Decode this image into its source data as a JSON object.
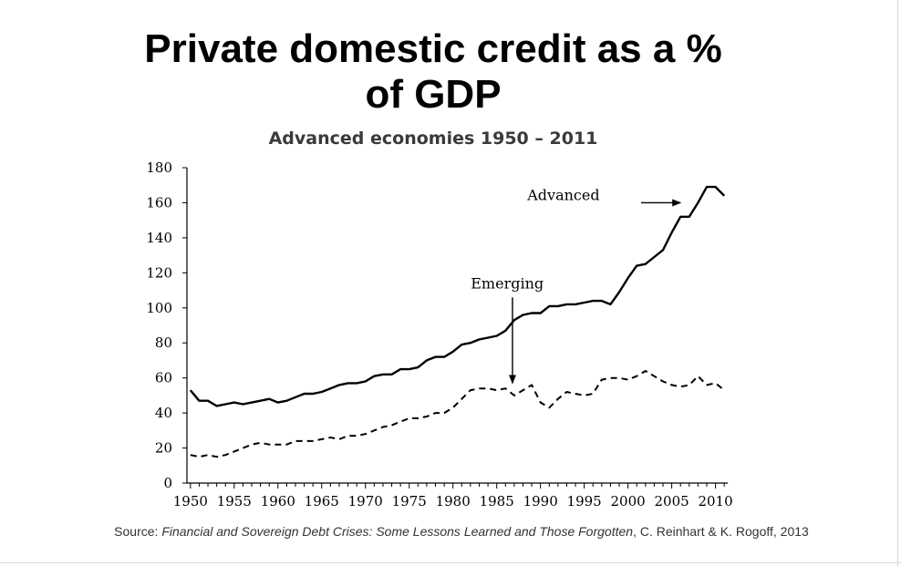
{
  "slide": {
    "title_line1": "Private domestic credit as a %",
    "title_line2": "of GDP",
    "subtitle": "Advanced economies 1950 – 2011",
    "source_prefix": "Source: ",
    "source_title": "Financial and Sovereign Debt Crises: Some Lessons Learned and Those Forgotten",
    "source_suffix": ", C. Reinhart & K.  Rogoff, 2013"
  },
  "chart_data": {
    "type": "line",
    "title": "",
    "xlabel": "",
    "ylabel": "",
    "xlim": [
      1950,
      2011
    ],
    "ylim": [
      0,
      180
    ],
    "x_ticks": [
      1950,
      1955,
      1960,
      1965,
      1970,
      1975,
      1980,
      1985,
      1990,
      1995,
      2000,
      2005,
      2010
    ],
    "y_ticks": [
      0,
      20,
      40,
      60,
      80,
      100,
      120,
      140,
      160,
      180
    ],
    "grid": false,
    "series": [
      {
        "name": "Advanced",
        "style": "solid",
        "color": "#000000",
        "points": [
          [
            1950,
            53
          ],
          [
            1951,
            47
          ],
          [
            1952,
            47
          ],
          [
            1953,
            44
          ],
          [
            1954,
            45
          ],
          [
            1955,
            46
          ],
          [
            1956,
            45
          ],
          [
            1957,
            46
          ],
          [
            1958,
            47
          ],
          [
            1959,
            48
          ],
          [
            1960,
            46
          ],
          [
            1961,
            47
          ],
          [
            1962,
            49
          ],
          [
            1963,
            51
          ],
          [
            1964,
            51
          ],
          [
            1965,
            52
          ],
          [
            1966,
            54
          ],
          [
            1967,
            56
          ],
          [
            1968,
            57
          ],
          [
            1969,
            57
          ],
          [
            1970,
            58
          ],
          [
            1971,
            61
          ],
          [
            1972,
            62
          ],
          [
            1973,
            62
          ],
          [
            1974,
            65
          ],
          [
            1975,
            65
          ],
          [
            1976,
            66
          ],
          [
            1977,
            70
          ],
          [
            1978,
            72
          ],
          [
            1979,
            72
          ],
          [
            1980,
            75
          ],
          [
            1981,
            79
          ],
          [
            1982,
            80
          ],
          [
            1983,
            82
          ],
          [
            1984,
            83
          ],
          [
            1985,
            84
          ],
          [
            1986,
            87
          ],
          [
            1987,
            93
          ],
          [
            1988,
            96
          ],
          [
            1989,
            97
          ],
          [
            1990,
            97
          ],
          [
            1991,
            101
          ],
          [
            1992,
            101
          ],
          [
            1993,
            102
          ],
          [
            1994,
            102
          ],
          [
            1995,
            103
          ],
          [
            1996,
            104
          ],
          [
            1997,
            104
          ],
          [
            1998,
            102
          ],
          [
            1999,
            109
          ],
          [
            2000,
            117
          ],
          [
            2001,
            124
          ],
          [
            2002,
            125
          ],
          [
            2003,
            129
          ],
          [
            2004,
            133
          ],
          [
            2005,
            143
          ],
          [
            2006,
            152
          ],
          [
            2007,
            152
          ],
          [
            2008,
            160
          ],
          [
            2009,
            169
          ],
          [
            2010,
            169
          ],
          [
            2011,
            164
          ]
        ]
      },
      {
        "name": "Emerging",
        "style": "dashed",
        "color": "#000000",
        "points": [
          [
            1950,
            16
          ],
          [
            1951,
            15
          ],
          [
            1952,
            16
          ],
          [
            1953,
            15
          ],
          [
            1954,
            16
          ],
          [
            1955,
            18
          ],
          [
            1956,
            20
          ],
          [
            1957,
            22
          ],
          [
            1958,
            23
          ],
          [
            1959,
            22
          ],
          [
            1960,
            22
          ],
          [
            1961,
            22
          ],
          [
            1962,
            24
          ],
          [
            1963,
            24
          ],
          [
            1964,
            24
          ],
          [
            1965,
            25
          ],
          [
            1966,
            26
          ],
          [
            1967,
            25
          ],
          [
            1968,
            27
          ],
          [
            1969,
            27
          ],
          [
            1970,
            28
          ],
          [
            1971,
            30
          ],
          [
            1972,
            32
          ],
          [
            1973,
            33
          ],
          [
            1974,
            35
          ],
          [
            1975,
            37
          ],
          [
            1976,
            37
          ],
          [
            1977,
            38
          ],
          [
            1978,
            40
          ],
          [
            1979,
            40
          ],
          [
            1980,
            43
          ],
          [
            1981,
            48
          ],
          [
            1982,
            53
          ],
          [
            1983,
            54
          ],
          [
            1984,
            54
          ],
          [
            1985,
            53
          ],
          [
            1986,
            54
          ],
          [
            1987,
            50
          ],
          [
            1988,
            53
          ],
          [
            1989,
            56
          ],
          [
            1990,
            46
          ],
          [
            1991,
            43
          ],
          [
            1992,
            48
          ],
          [
            1993,
            52
          ],
          [
            1994,
            51
          ],
          [
            1995,
            50
          ],
          [
            1996,
            51
          ],
          [
            1997,
            59
          ],
          [
            1998,
            60
          ],
          [
            1999,
            60
          ],
          [
            2000,
            59
          ],
          [
            2001,
            61
          ],
          [
            2002,
            64
          ],
          [
            2003,
            61
          ],
          [
            2004,
            58
          ],
          [
            2005,
            56
          ],
          [
            2006,
            55
          ],
          [
            2007,
            56
          ],
          [
            2008,
            61
          ],
          [
            2009,
            56
          ],
          [
            2010,
            57
          ],
          [
            2011,
            53
          ]
        ]
      }
    ],
    "annotations": [
      {
        "text": "Advanced",
        "target_series": "Advanced",
        "arrow": "right"
      },
      {
        "text": "Emerging",
        "target_series": "Emerging",
        "arrow": "down"
      }
    ]
  }
}
